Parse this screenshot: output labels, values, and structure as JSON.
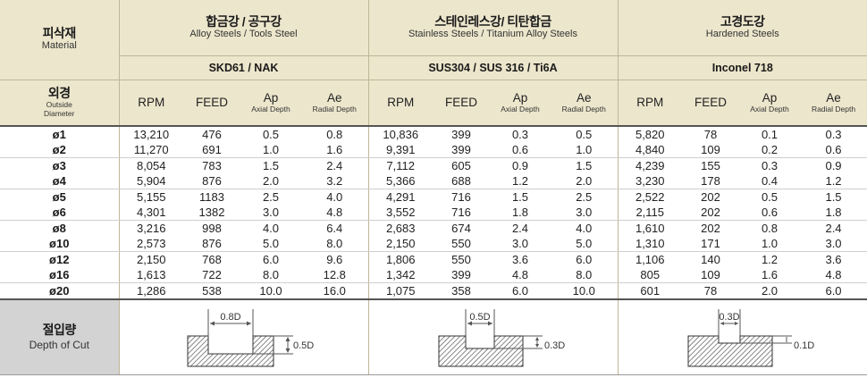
{
  "header": {
    "material": {
      "kr": "피삭재",
      "en": "Material"
    },
    "groups": [
      {
        "kr": "합금강 / 공구강",
        "en": "Alloy Steels / Tools Steel",
        "grade": "SKD61 / NAK"
      },
      {
        "kr": "스테인레스강/ 티탄합금",
        "en": "Stainless Steels / Titanium Alloy Steels",
        "grade": "SUS304 / SUS 316 / Ti6A"
      },
      {
        "kr": "고경도강",
        "en": "Hardened Steels",
        "grade": "Inconel 718"
      }
    ],
    "diameter": {
      "kr": "외경",
      "en1": "Outside",
      "en2": "Diameter"
    },
    "cols": {
      "rpm": "RPM",
      "feed": "FEED",
      "ap": "Ap",
      "ap_sub": "Axial Depth",
      "ae": "Ae",
      "ae_sub": "Radial Depth"
    }
  },
  "rows": [
    {
      "d": "ø1",
      "g1": [
        "13,210",
        "476",
        "0.5",
        "0.8"
      ],
      "g2": [
        "10,836",
        "399",
        "0.3",
        "0.5"
      ],
      "g3": [
        "5,820",
        "78",
        "0.1",
        "0.3"
      ]
    },
    {
      "d": "ø2",
      "g1": [
        "11,270",
        "691",
        "1.0",
        "1.6"
      ],
      "g2": [
        "9,391",
        "399",
        "0.6",
        "1.0"
      ],
      "g3": [
        "4,840",
        "109",
        "0.2",
        "0.6"
      ]
    },
    {
      "d": "ø3",
      "g1": [
        "8,054",
        "783",
        "1.5",
        "2.4"
      ],
      "g2": [
        "7,112",
        "605",
        "0.9",
        "1.5"
      ],
      "g3": [
        "4,239",
        "155",
        "0.3",
        "0.9"
      ]
    },
    {
      "d": "ø4",
      "g1": [
        "5,904",
        "876",
        "2.0",
        "3.2"
      ],
      "g2": [
        "5,366",
        "688",
        "1.2",
        "2.0"
      ],
      "g3": [
        "3,230",
        "178",
        "0.4",
        "1.2"
      ]
    },
    {
      "d": "ø5",
      "g1": [
        "5,155",
        "1183",
        "2.5",
        "4.0"
      ],
      "g2": [
        "4,291",
        "716",
        "1.5",
        "2.5"
      ],
      "g3": [
        "2,522",
        "202",
        "0.5",
        "1.5"
      ]
    },
    {
      "d": "ø6",
      "g1": [
        "4,301",
        "1382",
        "3.0",
        "4.8"
      ],
      "g2": [
        "3,552",
        "716",
        "1.8",
        "3.0"
      ],
      "g3": [
        "2,115",
        "202",
        "0.6",
        "1.8"
      ]
    },
    {
      "d": "ø8",
      "g1": [
        "3,216",
        "998",
        "4.0",
        "6.4"
      ],
      "g2": [
        "2,683",
        "674",
        "2.4",
        "4.0"
      ],
      "g3": [
        "1,610",
        "202",
        "0.8",
        "2.4"
      ]
    },
    {
      "d": "ø10",
      "g1": [
        "2,573",
        "876",
        "5.0",
        "8.0"
      ],
      "g2": [
        "2,150",
        "550",
        "3.0",
        "5.0"
      ],
      "g3": [
        "1,310",
        "171",
        "1.0",
        "3.0"
      ]
    },
    {
      "d": "ø12",
      "g1": [
        "2,150",
        "768",
        "6.0",
        "9.6"
      ],
      "g2": [
        "1,806",
        "550",
        "3.6",
        "6.0"
      ],
      "g3": [
        "1,106",
        "140",
        "1.2",
        "3.6"
      ]
    },
    {
      "d": "ø16",
      "g1": [
        "1,613",
        "722",
        "8.0",
        "12.8"
      ],
      "g2": [
        "1,342",
        "399",
        "4.8",
        "8.0"
      ],
      "g3": [
        "805",
        "109",
        "1.6",
        "4.8"
      ]
    },
    {
      "d": "ø20",
      "g1": [
        "1,286",
        "538",
        "10.0",
        "16.0"
      ],
      "g2": [
        "1,075",
        "358",
        "6.0",
        "10.0"
      ],
      "g3": [
        "601",
        "78",
        "2.0",
        "6.0"
      ]
    }
  ],
  "footer": {
    "kr": "절입량",
    "en": "Depth of Cut",
    "figures": [
      {
        "top": "0.8D",
        "side": "0.5D"
      },
      {
        "top": "0.5D",
        "side": "0.3D"
      },
      {
        "top": "0.3D",
        "side": "0.1D"
      }
    ]
  }
}
